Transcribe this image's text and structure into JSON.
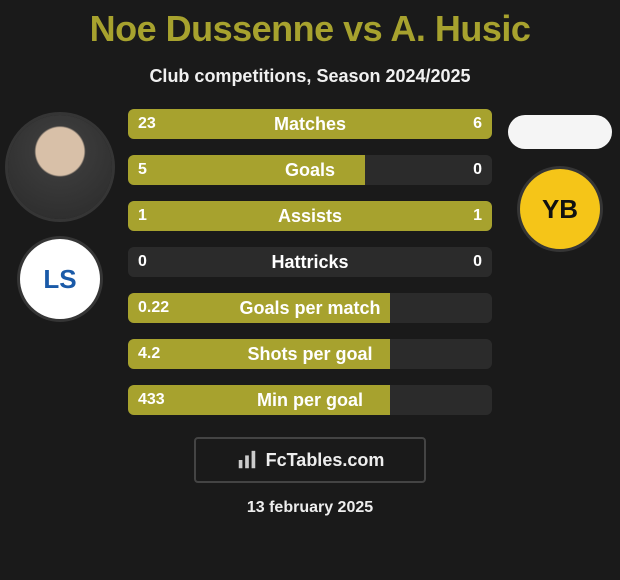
{
  "title": "Noe Dussenne vs A. Husic",
  "subtitle": "Club competitions, Season 2024/2025",
  "colors": {
    "bar_primary": "#a7a22e",
    "bar_secondary": "#a18f2a",
    "bar_background": "rgba(255,255,255,0.08)",
    "page_background": "#1a1a1a",
    "title_color": "#a7a22e",
    "text_color": "#ffffff"
  },
  "player_left": {
    "name": "Noe Dussenne",
    "avatar": "photo"
  },
  "player_right": {
    "name": "A. Husic",
    "avatar": "empty-pill"
  },
  "team_left": {
    "badge_text": "LS",
    "badge_bg": "#ffffff",
    "badge_fg": "#1a5aa8"
  },
  "team_right": {
    "badge_text": "YB",
    "badge_bg": "#f5c518",
    "badge_fg": "#111111"
  },
  "stats": [
    {
      "label": "Matches",
      "left_display": "23",
      "right_display": "6",
      "left_pct": 79,
      "right_pct": 21
    },
    {
      "label": "Goals",
      "left_display": "5",
      "right_display": "0",
      "left_pct": 65,
      "right_pct": 0
    },
    {
      "label": "Assists",
      "left_display": "1",
      "right_display": "1",
      "left_pct": 50,
      "right_pct": 50
    },
    {
      "label": "Hattricks",
      "left_display": "0",
      "right_display": "0",
      "left_pct": 0,
      "right_pct": 0
    },
    {
      "label": "Goals per match",
      "left_display": "0.22",
      "right_display": "",
      "left_pct": 72,
      "right_pct": 0,
      "no_right": true
    },
    {
      "label": "Shots per goal",
      "left_display": "4.2",
      "right_display": "",
      "left_pct": 72,
      "right_pct": 0,
      "no_right": true
    },
    {
      "label": "Min per goal",
      "left_display": "433",
      "right_display": "",
      "left_pct": 72,
      "right_pct": 0,
      "no_right": true
    }
  ],
  "footer": {
    "brand": "FcTables.com",
    "date": "13 february 2025"
  }
}
